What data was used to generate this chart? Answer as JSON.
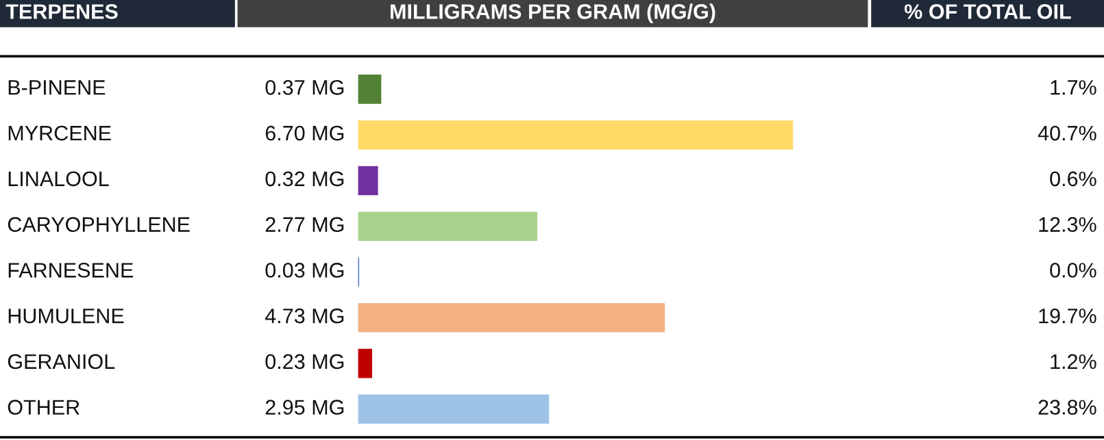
{
  "chart_data": {
    "type": "bar",
    "orientation": "horizontal",
    "tick_labels": false,
    "ylabel": "TERPENES",
    "xlabel": "MILLIGRAMS PER GRAM (MG/G)",
    "categories": [
      "B-PINENE",
      "MYRCENE",
      "LINALOOL",
      "CARYOPHYLLENE",
      "FARNESENE",
      "HUMULENE",
      "GERANIOL",
      "OTHER"
    ],
    "values": [
      0.37,
      6.7,
      0.32,
      2.77,
      0.03,
      4.73,
      0.23,
      2.95
    ],
    "value_labels": [
      "0.37 MG",
      "6.70 MG",
      "0.32 MG",
      "2.77 MG",
      "0.03 MG",
      "4.73 MG",
      "0.23 MG",
      "2.95 MG"
    ],
    "colors": [
      "#548235",
      "#ffd966",
      "#7030a0",
      "#a9d18e",
      "#4472c4",
      "#f4b183",
      "#c00000",
      "#9dc3e6"
    ],
    "annotations": [
      "% OF TOTAL OIL",
      "1.7%",
      "40.7%",
      "0.6%",
      "12.3%",
      "0.0%",
      "19.7%",
      "1.2%",
      "23.8%"
    ],
    "legend": false
  }
}
